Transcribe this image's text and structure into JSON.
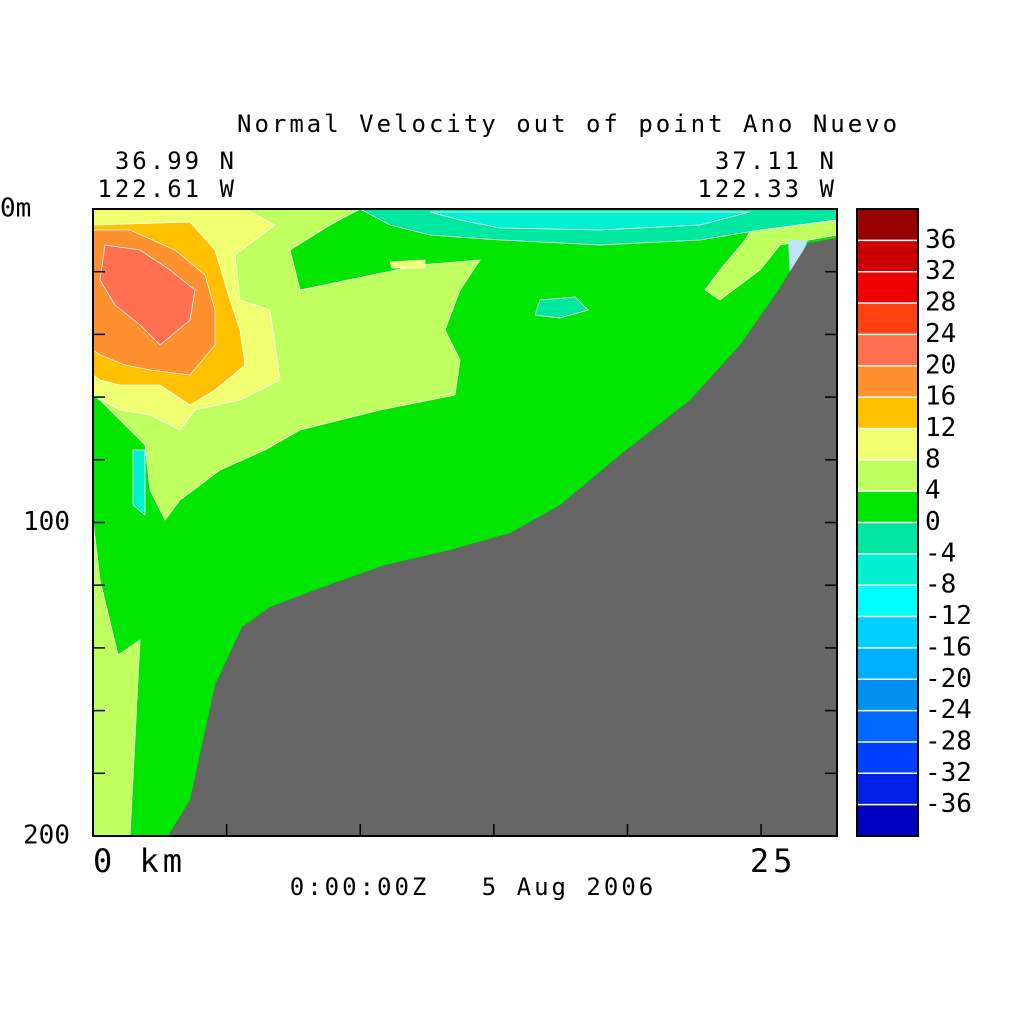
{
  "chart_data": {
    "type": "contour",
    "title": "Normal Velocity out of point Ano Nuevo",
    "corner_labels": {
      "left": [
        "36.99 N",
        "122.61 W"
      ],
      "right": [
        "37.11 N",
        "122.33 W"
      ]
    },
    "subtitle": "0:00:00Z   5 Aug 2006",
    "xlim": [
      0,
      27.84
    ],
    "xticks": [
      {
        "value": 0,
        "label": "0 km"
      },
      25
    ],
    "xminor": [
      5,
      10,
      15,
      20
    ],
    "ylim": [
      200,
      0
    ],
    "yticks": [
      {
        "value": 0,
        "label": "0m"
      },
      100,
      200
    ],
    "yminor": [
      20,
      40,
      60,
      80,
      120,
      140,
      160,
      180
    ],
    "colorbar": {
      "levels": [
        -40,
        -36,
        -32,
        -28,
        -24,
        -20,
        -16,
        -12,
        -8,
        -4,
        0,
        4,
        8,
        12,
        16,
        20,
        24,
        28,
        32,
        36,
        40
      ],
      "colors": [
        "#0000c0",
        "#0020e8",
        "#0040ff",
        "#0068ff",
        "#0090f0",
        "#00b0ff",
        "#00d0ff",
        "#00ffff",
        "#00f0d0",
        "#00e8a0",
        "#00e600",
        "#c0ff60",
        "#f0ff70",
        "#ffc000",
        "#ff9030",
        "#ff7050",
        "#ff4010",
        "#ee0000",
        "#cc0000",
        "#990000"
      ]
    }
  }
}
